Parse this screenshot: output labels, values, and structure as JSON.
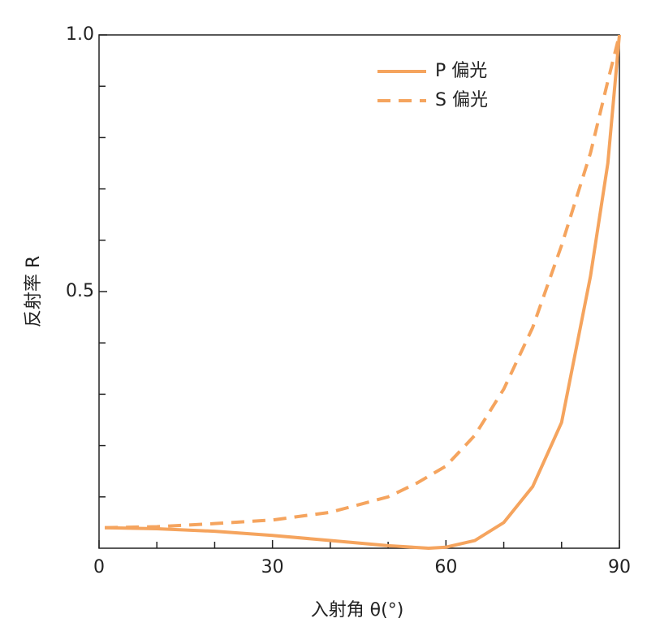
{
  "chart_data": {
    "type": "line",
    "xlabel": "入射角 θ(°)",
    "ylabel": "反射率 R",
    "series": [
      {
        "name": "P 偏光",
        "color": "#f5a45e",
        "style": "solid",
        "x": [
          1,
          10,
          20,
          30,
          40,
          50,
          57,
          60,
          65,
          70,
          75,
          80,
          85,
          88,
          90
        ],
        "values": [
          0.04,
          0.038,
          0.033,
          0.025,
          0.015,
          0.005,
          0,
          0.002,
          0.015,
          0.05,
          0.12,
          0.245,
          0.53,
          0.75,
          1.0
        ]
      },
      {
        "name": "S 偏光",
        "color": "#f5a45e",
        "style": "dashed",
        "x": [
          1,
          10,
          20,
          30,
          40,
          50,
          55,
          60,
          65,
          70,
          75,
          80,
          85,
          88,
          90
        ],
        "values": [
          0.04,
          0.042,
          0.048,
          0.055,
          0.07,
          0.1,
          0.127,
          0.16,
          0.22,
          0.31,
          0.43,
          0.59,
          0.77,
          0.91,
          1.0
        ]
      }
    ],
    "xlim": [
      0,
      90
    ],
    "xticks": [
      0,
      30,
      60,
      90
    ],
    "xminor_ticks": [
      10,
      20,
      40,
      50,
      70,
      80
    ],
    "ylim": [
      0,
      1
    ],
    "yticks": [
      {
        "value": 0.5,
        "label": "0.5"
      },
      {
        "value": 1,
        "label": "1.0"
      }
    ],
    "yminor_ticks": [
      0.1,
      0.2,
      0.3,
      0.4,
      0.6,
      0.7,
      0.8,
      0.9
    ],
    "legend": "upper-right"
  }
}
